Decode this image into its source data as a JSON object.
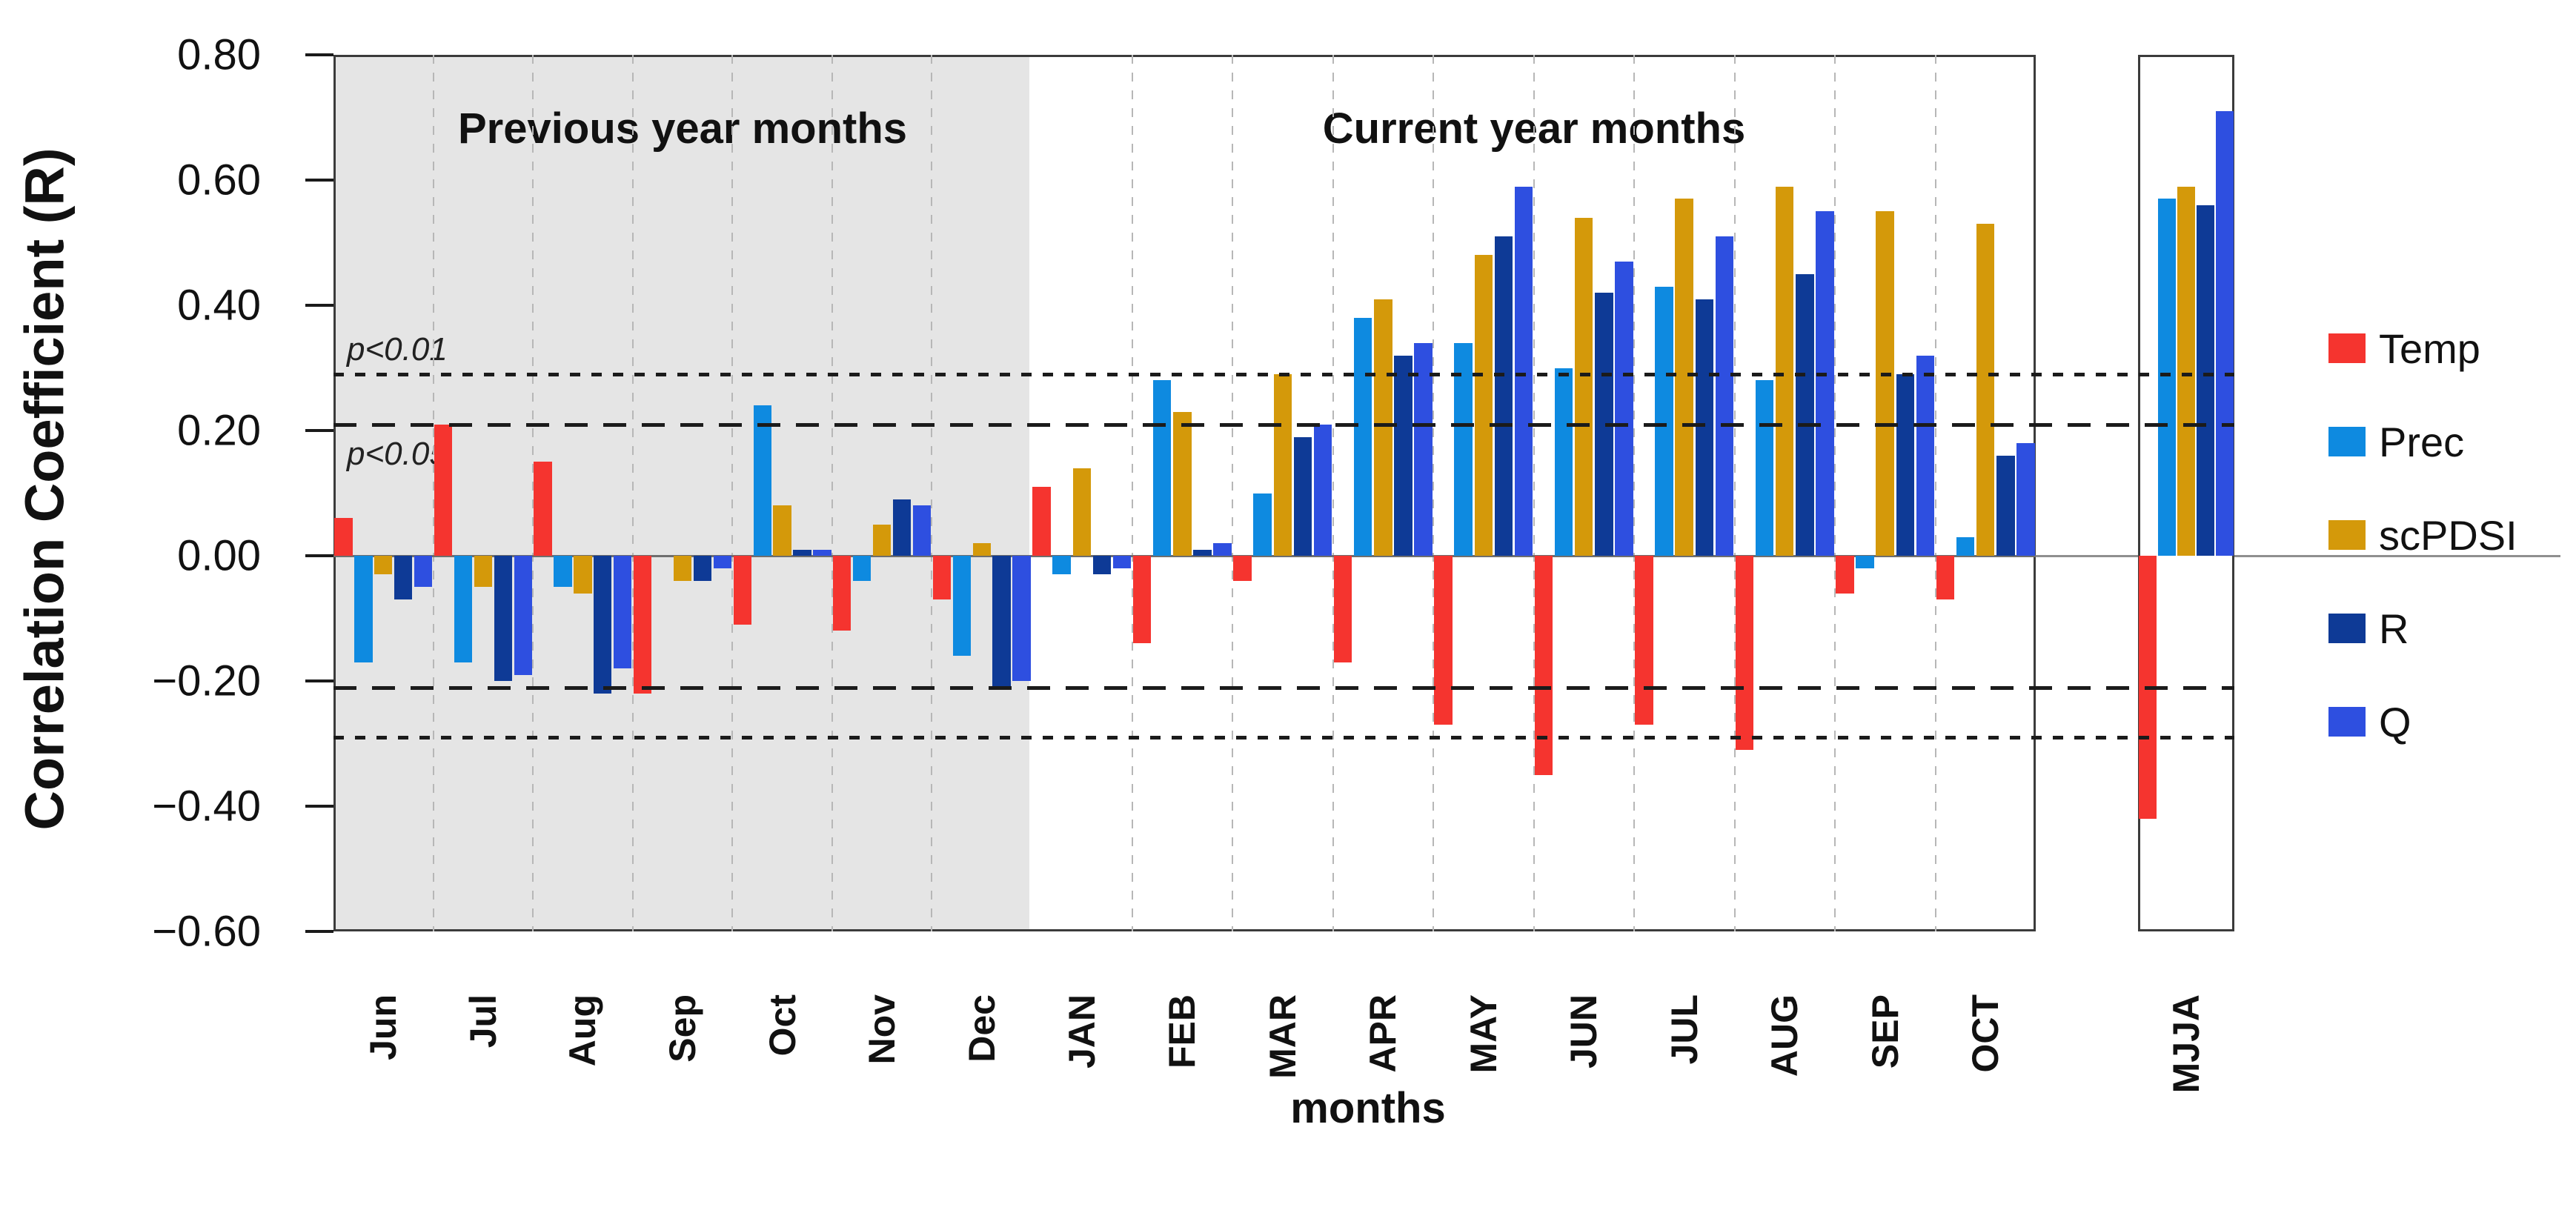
{
  "figure": {
    "y_axis": {
      "label": "Correlation Coefficient (R)",
      "ticks": [
        {
          "label": "0.80",
          "value": 0.8
        },
        {
          "label": "0.60",
          "value": 0.6
        },
        {
          "label": "0.40",
          "value": 0.4
        },
        {
          "label": "0.20",
          "value": 0.2
        },
        {
          "label": "0.00",
          "value": 0.0
        },
        {
          "label": "−0.20",
          "value": -0.2
        },
        {
          "label": "−0.40",
          "value": -0.4
        },
        {
          "label": "−0.60",
          "value": -0.6
        }
      ]
    },
    "x_axis": {
      "label": "months"
    },
    "section_titles": {
      "previous": "Previous year months",
      "current": "Current year months"
    },
    "significance_lines": [
      {
        "label": "p<0.01",
        "value": 0.29,
        "style": "short-dash"
      },
      {
        "label": "p<0.05",
        "value": 0.21,
        "style": "long-dash"
      },
      {
        "label": "",
        "value": -0.21,
        "style": "long-dash"
      },
      {
        "label": "",
        "value": -0.29,
        "style": "short-dash"
      }
    ]
  },
  "chart_data": {
    "type": "bar",
    "ylabel": "Correlation Coefficient (R)",
    "xlabel": "months",
    "ylim": [
      -0.6,
      0.8
    ],
    "grid": "vertical-dashed",
    "legend_position": "right",
    "series_names": [
      "Temp",
      "Prec",
      "scPDSI",
      "R",
      "Q"
    ],
    "colors": {
      "Temp": "#F5342F",
      "Prec": "#0E8AE0",
      "scPDSI": "#D4990A",
      "R": "#0E3A96",
      "Q": "#2E4FE0"
    },
    "sections": [
      {
        "id": "previous",
        "background": "#E5E5E5",
        "categories": [
          "Jun",
          "Jul",
          "Aug",
          "Sep",
          "Oct",
          "Nov",
          "Dec"
        ],
        "series": [
          {
            "name": "Temp",
            "values": [
              0.06,
              0.21,
              0.15,
              -0.22,
              -0.11,
              -0.12,
              -0.07
            ]
          },
          {
            "name": "Prec",
            "values": [
              -0.17,
              -0.17,
              -0.05,
              0.0,
              0.24,
              -0.04,
              -0.16
            ]
          },
          {
            "name": "scPDSI",
            "values": [
              -0.03,
              -0.05,
              -0.06,
              -0.04,
              0.08,
              0.05,
              0.02
            ]
          },
          {
            "name": "R",
            "values": [
              -0.07,
              -0.2,
              -0.22,
              -0.04,
              0.01,
              0.09,
              -0.21
            ]
          },
          {
            "name": "Q",
            "values": [
              -0.05,
              -0.19,
              -0.18,
              -0.02,
              0.01,
              0.08,
              -0.2
            ]
          }
        ]
      },
      {
        "id": "current",
        "background": "#FFFFFF",
        "categories": [
          "JAN",
          "FEB",
          "MAR",
          "APR",
          "MAY",
          "JUN",
          "JUL",
          "AUG",
          "SEP",
          "OCT"
        ],
        "series": [
          {
            "name": "Temp",
            "values": [
              0.11,
              -0.14,
              -0.04,
              -0.17,
              -0.27,
              -0.35,
              -0.27,
              -0.31,
              -0.06,
              -0.07
            ]
          },
          {
            "name": "Prec",
            "values": [
              -0.03,
              0.28,
              0.1,
              0.38,
              0.34,
              0.3,
              0.43,
              0.28,
              -0.02,
              0.03
            ]
          },
          {
            "name": "scPDSI",
            "values": [
              0.14,
              0.23,
              0.29,
              0.41,
              0.48,
              0.54,
              0.57,
              0.59,
              0.55,
              0.53
            ]
          },
          {
            "name": "R",
            "values": [
              -0.03,
              0.01,
              0.19,
              0.32,
              0.51,
              0.42,
              0.41,
              0.45,
              0.29,
              0.16
            ]
          },
          {
            "name": "Q",
            "values": [
              -0.02,
              0.02,
              0.21,
              0.34,
              0.59,
              0.47,
              0.51,
              0.55,
              0.32,
              0.18
            ]
          }
        ]
      },
      {
        "id": "mjja",
        "background": "#FFFFFF",
        "categories": [
          "MJJA"
        ],
        "series": [
          {
            "name": "Temp",
            "values": [
              -0.42
            ]
          },
          {
            "name": "Prec",
            "values": [
              0.57
            ]
          },
          {
            "name": "scPDSI",
            "values": [
              0.59
            ]
          },
          {
            "name": "R",
            "values": [
              0.56
            ]
          },
          {
            "name": "Q",
            "values": [
              0.71
            ]
          }
        ]
      }
    ]
  },
  "legend": {
    "items": [
      {
        "label": "Temp",
        "color": "#F5342F"
      },
      {
        "label": "Prec",
        "color": "#0E8AE0"
      },
      {
        "label": "scPDSI",
        "color": "#D4990A"
      },
      {
        "label": "R",
        "color": "#0E3A96"
      },
      {
        "label": "Q",
        "color": "#2E4FE0"
      }
    ]
  }
}
